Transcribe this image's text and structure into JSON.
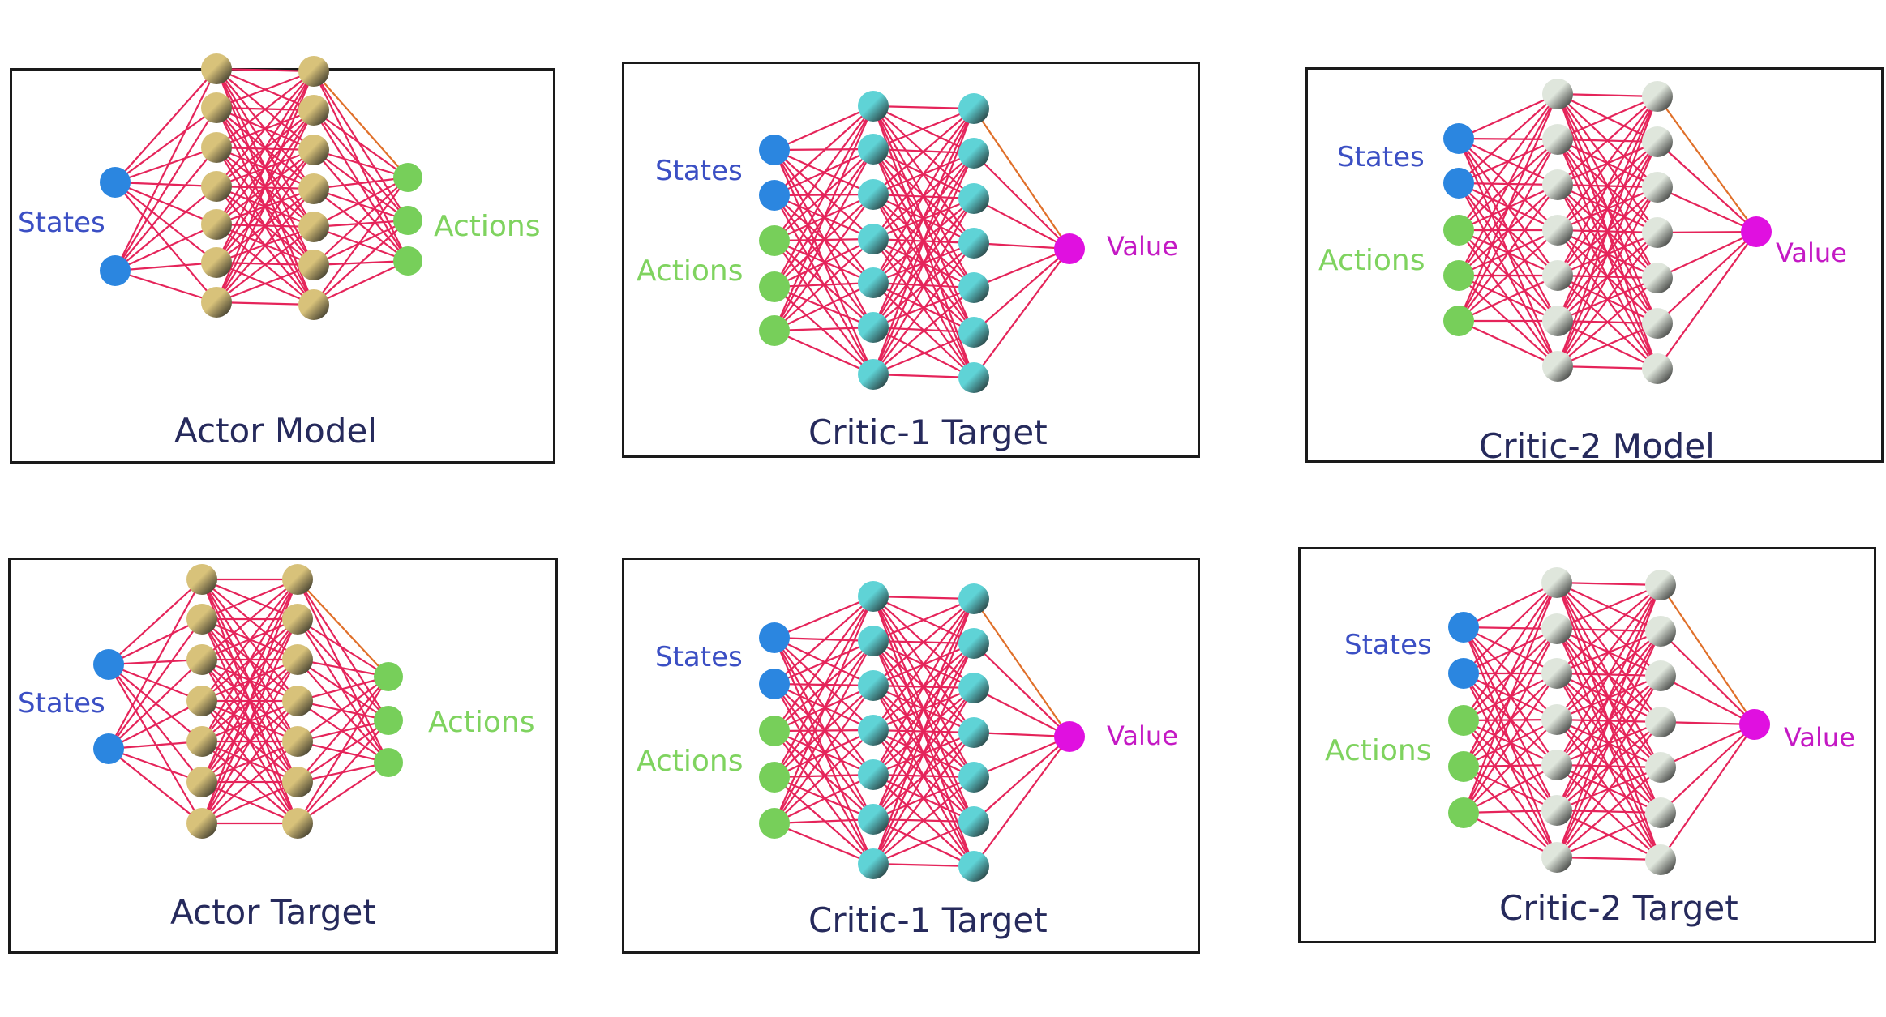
{
  "colors": {
    "edge": "#e5245a",
    "edge_accent": "#e0702a",
    "states_node": "#2b86e0",
    "actions_node": "#77cf5a",
    "value_node": "#e010e0",
    "actor_hidden": "#d8c27a",
    "critic1_hidden": "#5fd3d6",
    "critic2_hidden": "#dfe6dc",
    "states_text": "#3b4fc4",
    "actions_text": "#7fd35f",
    "value_text": "#c419c4",
    "title_text": "#262a5c"
  },
  "panels": [
    {
      "id": "actor-model",
      "kind": "actor",
      "title": "Actor Model",
      "states_label": "States",
      "actions_label": "Actions"
    },
    {
      "id": "critic1-target-top",
      "kind": "critic1",
      "title": "Critic-1  Target",
      "states_label": "States",
      "actions_label": "Actions",
      "value_label": "Value"
    },
    {
      "id": "critic2-model",
      "kind": "critic2",
      "title": "Critic-2  Model",
      "states_label": "States",
      "actions_label": "Actions",
      "value_label": "Value"
    },
    {
      "id": "actor-target",
      "kind": "actor",
      "title": "Actor Target",
      "states_label": "States",
      "actions_label": "Actions"
    },
    {
      "id": "critic1-target-bottom",
      "kind": "critic1",
      "title": "Critic-1  Target",
      "states_label": "States",
      "actions_label": "Actions",
      "value_label": "Value"
    },
    {
      "id": "critic2-target",
      "kind": "critic2",
      "title": "Critic-2  Target",
      "states_label": "States",
      "actions_label": "Actions",
      "value_label": "Value"
    }
  ]
}
